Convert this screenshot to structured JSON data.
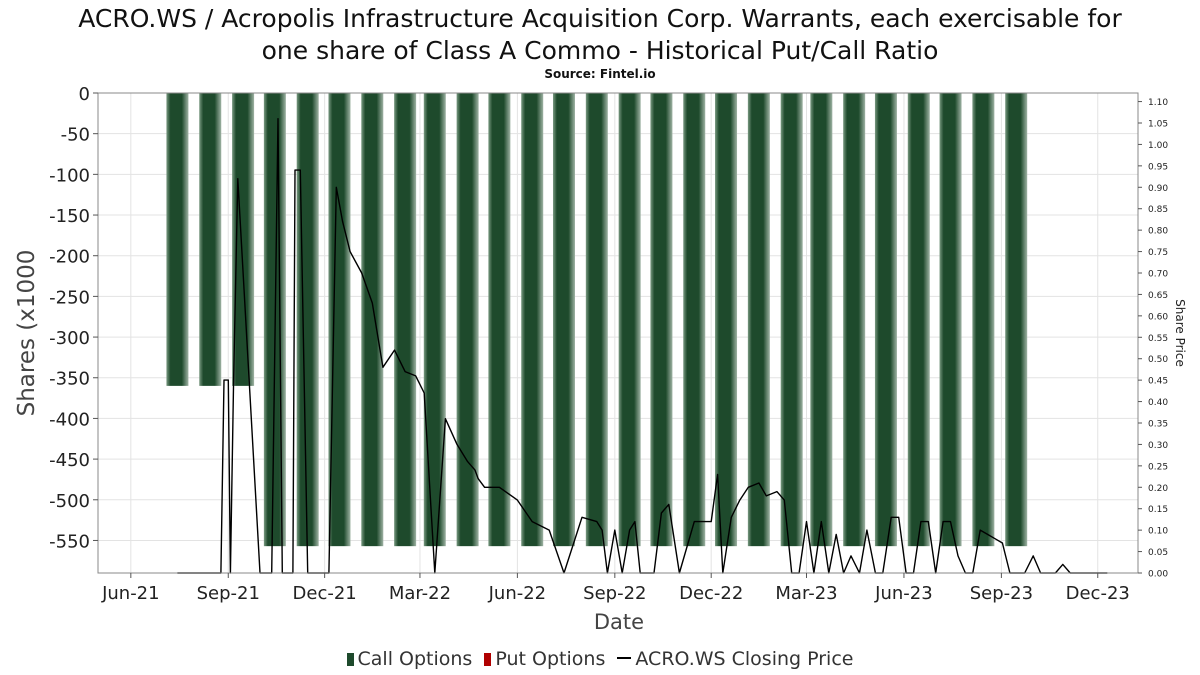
{
  "title_line1": "ACRO.WS / Acropolis Infrastructure Acquisition Corp. Warrants, each exercisable for",
  "title_line2": "one share of Class A Commo - Historical Put/Call Ratio",
  "subtitle": "Source: Fintel.io",
  "colors": {
    "call": "#1e4a2c",
    "put": "#b00000",
    "price": "#000000",
    "grid": "#e3e3e3"
  },
  "chart_data": {
    "type": "bar",
    "xlabel": "Date",
    "ylabel": "Shares (x1000",
    "y2label": "Share Price",
    "ylim": [
      -590,
      0
    ],
    "y2lim": [
      0,
      1.12
    ],
    "grid": true,
    "legend_placement": "bottom",
    "x_ticks": [
      "Jun-21",
      "Sep-21",
      "Dec-21",
      "Mar-22",
      "Jun-22",
      "Sep-22",
      "Dec-22",
      "Mar-23",
      "Jun-23",
      "Sep-23",
      "Dec-23"
    ],
    "y_ticks": [
      0,
      -50,
      -100,
      -150,
      -200,
      -250,
      -300,
      -350,
      -400,
      -450,
      -500,
      -550
    ],
    "y2_ticks": [
      "1.10",
      "1.05",
      "1.00",
      "0.95",
      "0.90",
      "0.85",
      "0.80",
      "0.75",
      "0.70",
      "0.65",
      "0.60",
      "0.55",
      "0.50",
      "0.45",
      "0.40",
      "0.35",
      "0.30",
      "0.25",
      "0.20",
      "0.15",
      "0.10",
      "0.05",
      "0.00"
    ],
    "legend": [
      "Call Options",
      "Put Options",
      "ACRO.WS Closing Price"
    ],
    "series": [
      {
        "name": "Call Options",
        "x": [
          "2021-07-15",
          "2021-08-15",
          "2021-09-15",
          "2021-10-15",
          "2021-11-15",
          "2021-12-15",
          "2022-01-15",
          "2022-02-15",
          "2022-03-15",
          "2022-04-15",
          "2022-05-15",
          "2022-06-15",
          "2022-07-15",
          "2022-08-15",
          "2022-09-15",
          "2022-10-15",
          "2022-11-15",
          "2022-12-15",
          "2023-01-15",
          "2023-02-15",
          "2023-03-15",
          "2023-04-15",
          "2023-05-15",
          "2023-06-15",
          "2023-07-15",
          "2023-08-15",
          "2023-09-15"
        ],
        "values": [
          -360,
          -360,
          -360,
          -557,
          -557,
          -557,
          -557,
          -557,
          -557,
          -557,
          -557,
          -557,
          -557,
          -557,
          -557,
          -557,
          -557,
          -557,
          -557,
          -557,
          -557,
          -557,
          -557,
          -557,
          -557,
          -557,
          -557
        ]
      },
      {
        "name": "Put Options",
        "x": [],
        "values": []
      },
      {
        "name": "ACRO.WS Closing Price",
        "x": [
          "2021-07-15",
          "2021-08-25",
          "2021-08-28",
          "2021-09-01",
          "2021-09-03",
          "2021-09-06",
          "2021-09-10",
          "2021-10-01",
          "2021-10-08",
          "2021-10-12",
          "2021-10-18",
          "2021-10-22",
          "2021-11-01",
          "2021-11-03",
          "2021-11-08",
          "2021-11-15",
          "2021-11-19",
          "2021-11-25",
          "2021-12-05",
          "2021-12-12",
          "2021-12-18",
          "2021-12-25",
          "2022-01-05",
          "2022-01-15",
          "2022-01-25",
          "2022-02-05",
          "2022-02-15",
          "2022-02-25",
          "2022-03-05",
          "2022-03-15",
          "2022-03-25",
          "2022-04-05",
          "2022-04-15",
          "2022-04-22",
          "2022-04-25",
          "2022-05-01",
          "2022-05-15",
          "2022-06-01",
          "2022-06-15",
          "2022-07-01",
          "2022-07-15",
          "2022-08-01",
          "2022-08-15",
          "2022-08-20",
          "2022-08-25",
          "2022-09-01",
          "2022-09-08",
          "2022-09-15",
          "2022-09-20",
          "2022-09-25",
          "2022-10-02",
          "2022-10-08",
          "2022-10-15",
          "2022-10-22",
          "2022-11-01",
          "2022-11-15",
          "2022-11-22",
          "2022-12-01",
          "2022-12-07",
          "2022-12-12",
          "2022-12-20",
          "2022-12-28",
          "2023-01-05",
          "2023-01-15",
          "2023-01-22",
          "2023-02-01",
          "2023-02-08",
          "2023-02-15",
          "2023-02-22",
          "2023-03-01",
          "2023-03-08",
          "2023-03-15",
          "2023-03-22",
          "2023-03-29",
          "2023-04-05",
          "2023-04-12",
          "2023-04-20",
          "2023-04-27",
          "2023-05-05",
          "2023-05-12",
          "2023-05-20",
          "2023-05-27",
          "2023-06-03",
          "2023-06-10",
          "2023-06-17",
          "2023-06-24",
          "2023-07-01",
          "2023-07-08",
          "2023-07-15",
          "2023-07-22",
          "2023-07-29",
          "2023-08-05",
          "2023-08-12",
          "2023-08-19",
          "2023-08-26",
          "2023-09-02",
          "2023-09-09",
          "2023-09-16",
          "2023-09-23",
          "2023-10-01",
          "2023-10-08",
          "2023-10-15",
          "2023-10-22",
          "2023-10-29",
          "2023-11-05",
          "2023-11-12",
          "2023-11-19",
          "2023-11-26",
          "2023-12-03",
          "2023-12-10"
        ],
        "values": [
          0.0,
          0.0,
          0.45,
          0.45,
          0.0,
          0.45,
          0.92,
          0.0,
          0.0,
          0.0,
          1.06,
          0.0,
          0.0,
          0.94,
          0.94,
          0.0,
          0.0,
          0.0,
          0.0,
          0.9,
          0.82,
          0.75,
          0.7,
          0.63,
          0.48,
          0.52,
          0.47,
          0.46,
          0.42,
          0.0,
          0.36,
          0.3,
          0.26,
          0.24,
          0.22,
          0.2,
          0.2,
          0.17,
          0.12,
          0.1,
          0.0,
          0.13,
          0.12,
          0.1,
          0.0,
          0.1,
          0.0,
          0.1,
          0.12,
          0.0,
          0.0,
          0.0,
          0.14,
          0.16,
          0.0,
          0.12,
          0.12,
          0.12,
          0.23,
          0.0,
          0.13,
          0.17,
          0.2,
          0.21,
          0.18,
          0.19,
          0.17,
          0.0,
          0.0,
          0.12,
          0.0,
          0.12,
          0.0,
          0.09,
          0.0,
          0.04,
          0.0,
          0.1,
          0.0,
          0.0,
          0.13,
          0.13,
          0.0,
          0.0,
          0.12,
          0.12,
          0.0,
          0.12,
          0.12,
          0.04,
          0.0,
          0.0,
          0.1,
          0.09,
          0.08,
          0.07,
          0.0,
          0.0,
          0.0,
          0.04,
          0.0,
          0.0,
          0.0,
          0.02,
          0.0,
          0.0,
          0.0,
          0.0,
          0.0,
          0.0
        ]
      }
    ]
  }
}
